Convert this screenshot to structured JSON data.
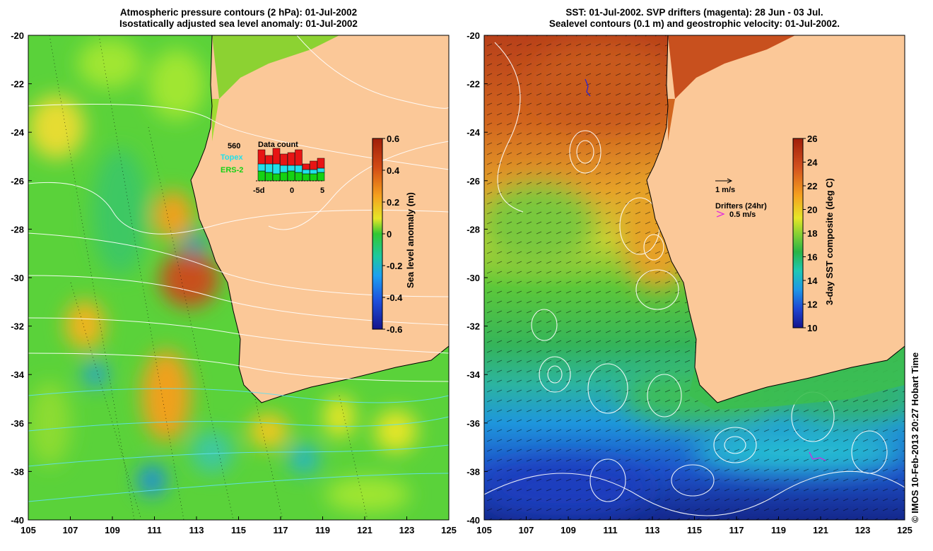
{
  "left_panel": {
    "title_line1": "Atmospheric pressure contours (2 hPa): 01-Jul-2002",
    "title_line2": "Isostatically adjusted sea level anomaly: 01-Jul-2002",
    "colorbar": {
      "label": "Sea level anomaly (m)",
      "ticks": [
        "0.6",
        "0.4",
        "0.2",
        "0",
        "-0.2",
        "-0.4",
        "-0.6"
      ]
    },
    "inset": {
      "title": "Data count",
      "count_label": "560",
      "legend_topex": "Topex",
      "legend_ers2": "ERS-2",
      "x_ticks": [
        "-5d",
        "0",
        "5"
      ],
      "colors": {
        "red": "#e81414",
        "cyan": "#22e0ea",
        "green": "#14d214"
      }
    }
  },
  "right_panel": {
    "title_line1": "SST: 01-Jul-2002. SVP drifters (magenta): 28 Jun - 03 Jul.",
    "title_line2": "Sealevel contours (0.1 m) and geostrophic velocity: 01-Jul-2002.",
    "colorbar": {
      "label": "3-day SST composite (deg C)",
      "ticks": [
        "26",
        "24",
        "22",
        "20",
        "18",
        "16",
        "14",
        "12",
        "10"
      ]
    },
    "legend": {
      "velocity_label": "1 m/s",
      "drifters_title": "Drifters (24hr)",
      "drifters_speed": "0.5 m/s",
      "drifter_color": "#e020e0"
    }
  },
  "axes": {
    "y_ticks": [
      "-20",
      "-22",
      "-24",
      "-26",
      "-28",
      "-30",
      "-32",
      "-34",
      "-36",
      "-38",
      "-40"
    ],
    "x_ticks": [
      "105",
      "107",
      "109",
      "111",
      "113",
      "115",
      "117",
      "119",
      "121",
      "123",
      "125"
    ]
  },
  "credit": "© IMOS 10-Feb-2013 20:27 Hobart Time",
  "colors": {
    "land": "#fbc898",
    "sea_green": "#5ad23a",
    "sst_warm": "#d2601e",
    "sst_cold": "#1e3cc8"
  }
}
